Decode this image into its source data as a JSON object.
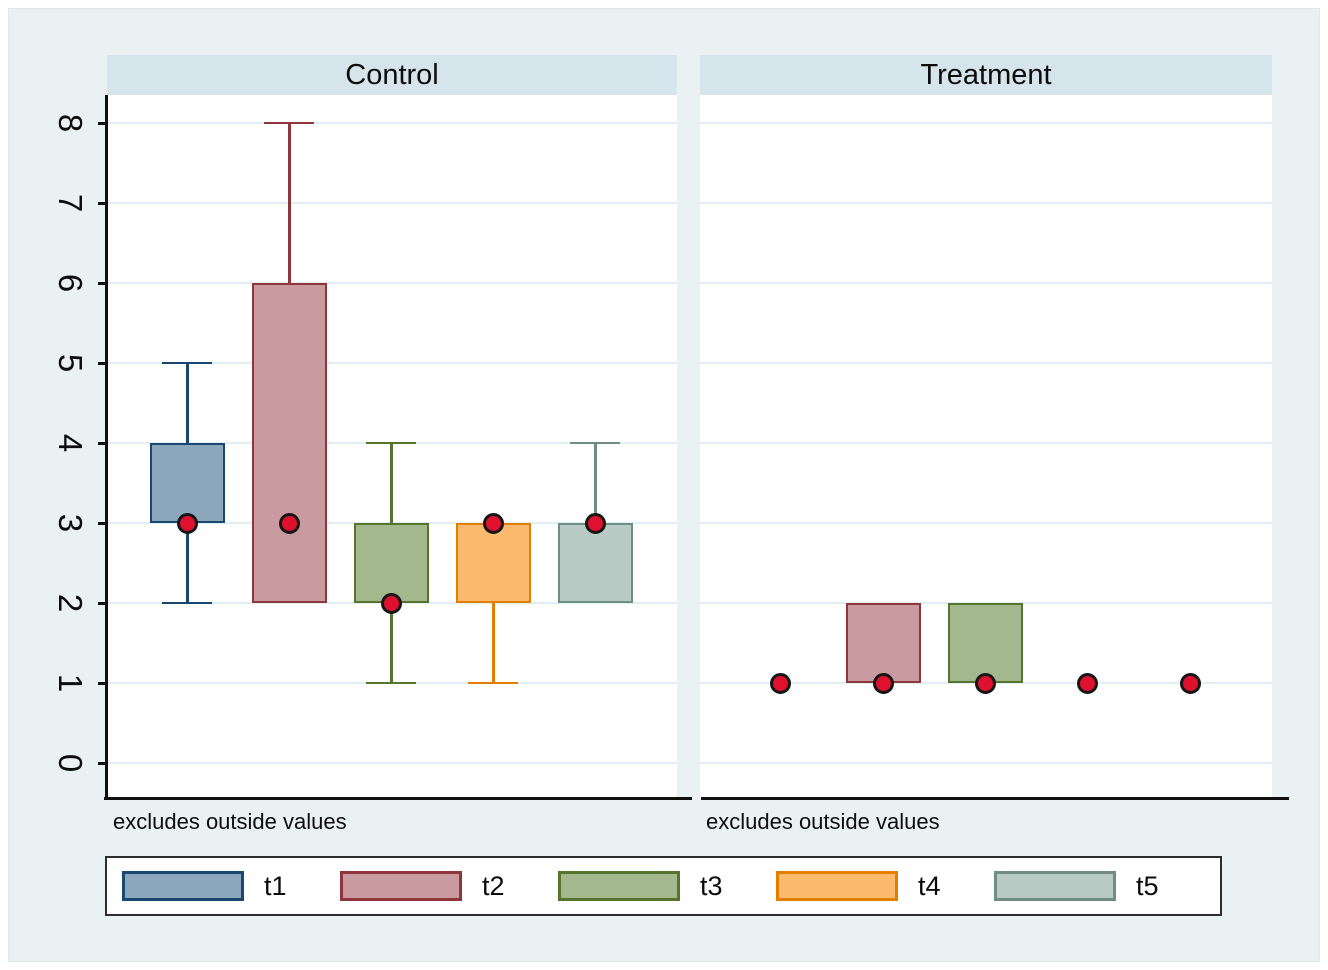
{
  "chart_data": {
    "type": "box",
    "title": "",
    "y_axis": {
      "range": [
        0,
        8
      ],
      "ticks": [
        0,
        1,
        2,
        3,
        4,
        5,
        6,
        7,
        8
      ]
    },
    "categories": [
      "t1",
      "t2",
      "t3",
      "t4",
      "t5"
    ],
    "series": [
      {
        "name": "t1",
        "fill": "#8ca6bb",
        "stroke": "#1a476f"
      },
      {
        "name": "t2",
        "fill": "#c99a9f",
        "stroke": "#90353b"
      },
      {
        "name": "t3",
        "fill": "#a3b88c",
        "stroke": "#55752f"
      },
      {
        "name": "t4",
        "fill": "#fcba6e",
        "stroke": "#e37e00"
      },
      {
        "name": "t5",
        "fill": "#b8cac3",
        "stroke": "#6e8e84"
      }
    ],
    "median_marker": {
      "fill": "#e0112e",
      "stroke": "#161616"
    },
    "legend": [
      "t1",
      "t2",
      "t3",
      "t4",
      "t5"
    ],
    "panels": [
      {
        "title": "Control",
        "note": "excludes outside values",
        "boxes": [
          {
            "series": "t1",
            "q1": 3,
            "q3": 4,
            "whisker_low": 2,
            "whisker_high": 5,
            "median": 3
          },
          {
            "series": "t2",
            "q1": 2,
            "q3": 6,
            "whisker_low": null,
            "whisker_high": 8,
            "median": 3
          },
          {
            "series": "t3",
            "q1": 2,
            "q3": 3,
            "whisker_low": 1,
            "whisker_high": 4,
            "median": 2
          },
          {
            "series": "t4",
            "q1": 2,
            "q3": 3,
            "whisker_low": 1,
            "whisker_high": null,
            "median": 3
          },
          {
            "series": "t5",
            "q1": 2,
            "q3": 3,
            "whisker_low": null,
            "whisker_high": 4,
            "median": 3
          }
        ]
      },
      {
        "title": "Treatment",
        "note": "excludes outside values",
        "boxes": [
          {
            "series": "t1",
            "q1": null,
            "q3": null,
            "whisker_low": null,
            "whisker_high": null,
            "median": 1
          },
          {
            "series": "t2",
            "q1": 1,
            "q3": 2,
            "whisker_low": null,
            "whisker_high": null,
            "median": 1
          },
          {
            "series": "t3",
            "q1": 1,
            "q3": 2,
            "whisker_low": null,
            "whisker_high": null,
            "median": 1
          },
          {
            "series": "t4",
            "q1": null,
            "q3": null,
            "whisker_low": null,
            "whisker_high": null,
            "median": 1
          },
          {
            "series": "t5",
            "q1": null,
            "q3": null,
            "whisker_low": null,
            "whisker_high": null,
            "median": 1
          }
        ]
      }
    ]
  }
}
